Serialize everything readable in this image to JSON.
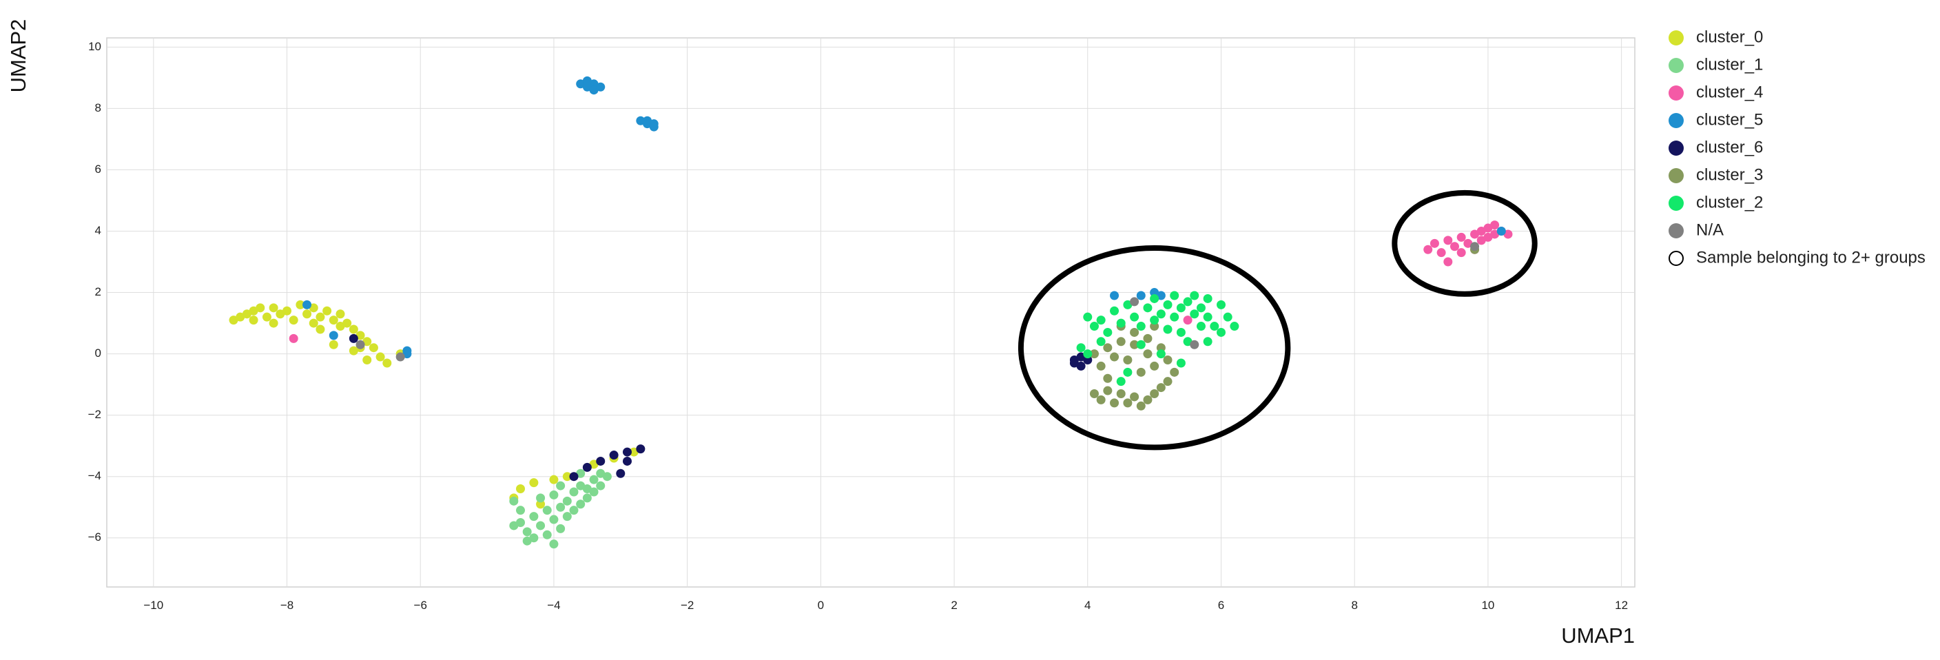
{
  "chart_data": {
    "type": "scatter",
    "xlabel": "UMAP1",
    "ylabel": "UMAP2",
    "xlim": [
      -10.7,
      12.2
    ],
    "ylim": [
      -7.6,
      10.3
    ],
    "xticks": [
      -10,
      -8,
      -6,
      -4,
      -2,
      0,
      2,
      4,
      6,
      8,
      10,
      12
    ],
    "yticks": [
      -6,
      -4,
      -2,
      0,
      2,
      4,
      6,
      8,
      10
    ],
    "grid": true,
    "legend_position": "right",
    "legend": [
      {
        "name": "cluster_0",
        "color": "#d4e22c"
      },
      {
        "name": "cluster_1",
        "color": "#7fd88f"
      },
      {
        "name": "cluster_4",
        "color": "#f45aa6"
      },
      {
        "name": "cluster_5",
        "color": "#1f8fcf"
      },
      {
        "name": "cluster_6",
        "color": "#14145e"
      },
      {
        "name": "cluster_3",
        "color": "#869a5c"
      },
      {
        "name": "cluster_2",
        "color": "#12e86a"
      },
      {
        "name": "N/A",
        "color": "#808080"
      },
      {
        "name": "Sample belonging to 2+ groups",
        "color": "none",
        "marker": "open-circle"
      }
    ],
    "series": [
      {
        "name": "cluster_0",
        "color": "#d4e22c",
        "points": [
          [
            -8.8,
            1.1
          ],
          [
            -8.7,
            1.2
          ],
          [
            -8.6,
            1.3
          ],
          [
            -8.5,
            1.4
          ],
          [
            -8.4,
            1.5
          ],
          [
            -8.3,
            1.2
          ],
          [
            -8.2,
            1.5
          ],
          [
            -8.1,
            1.3
          ],
          [
            -8.0,
            1.4
          ],
          [
            -7.9,
            1.1
          ],
          [
            -7.8,
            1.6
          ],
          [
            -7.7,
            1.3
          ],
          [
            -7.6,
            1.5
          ],
          [
            -7.5,
            1.2
          ],
          [
            -7.4,
            1.4
          ],
          [
            -7.3,
            1.1
          ],
          [
            -7.2,
            1.3
          ],
          [
            -7.1,
            1.0
          ],
          [
            -7.0,
            0.8
          ],
          [
            -6.9,
            0.6
          ],
          [
            -6.8,
            0.4
          ],
          [
            -6.7,
            0.2
          ],
          [
            -6.6,
            -0.1
          ],
          [
            -6.5,
            -0.3
          ],
          [
            -7.5,
            0.8
          ],
          [
            -7.3,
            0.3
          ],
          [
            -7.2,
            0.9
          ],
          [
            -7.0,
            0.1
          ],
          [
            -6.9,
            0.2
          ],
          [
            -6.8,
            -0.2
          ],
          [
            -8.5,
            1.1
          ],
          [
            -8.2,
            1.0
          ],
          [
            -7.6,
            1.0
          ],
          [
            -6.3,
            0.0
          ],
          [
            -4.5,
            -4.4
          ],
          [
            -4.3,
            -4.2
          ],
          [
            -4.0,
            -4.1
          ],
          [
            -3.8,
            -4.0
          ],
          [
            -4.6,
            -4.7
          ],
          [
            -3.4,
            -3.6
          ],
          [
            -3.1,
            -3.4
          ],
          [
            -2.8,
            -3.2
          ],
          [
            -4.2,
            -4.9
          ]
        ]
      },
      {
        "name": "cluster_1",
        "color": "#7fd88f",
        "points": [
          [
            -4.6,
            -4.8
          ],
          [
            -4.5,
            -5.1
          ],
          [
            -4.5,
            -5.5
          ],
          [
            -4.4,
            -5.8
          ],
          [
            -4.3,
            -5.3
          ],
          [
            -4.3,
            -6.0
          ],
          [
            -4.2,
            -5.6
          ],
          [
            -4.2,
            -4.7
          ],
          [
            -4.1,
            -5.1
          ],
          [
            -4.1,
            -5.9
          ],
          [
            -4.0,
            -5.4
          ],
          [
            -4.0,
            -4.6
          ],
          [
            -3.9,
            -5.0
          ],
          [
            -3.9,
            -5.7
          ],
          [
            -3.8,
            -4.8
          ],
          [
            -3.8,
            -5.3
          ],
          [
            -3.7,
            -4.5
          ],
          [
            -3.7,
            -5.1
          ],
          [
            -3.6,
            -4.3
          ],
          [
            -3.6,
            -4.9
          ],
          [
            -3.5,
            -4.4
          ],
          [
            -3.5,
            -4.7
          ],
          [
            -3.4,
            -4.1
          ],
          [
            -3.4,
            -4.5
          ],
          [
            -3.3,
            -3.9
          ],
          [
            -3.3,
            -4.3
          ],
          [
            -3.2,
            -4.0
          ],
          [
            -4.6,
            -5.6
          ],
          [
            -4.4,
            -6.1
          ],
          [
            -4.0,
            -6.2
          ],
          [
            -3.9,
            -4.3
          ],
          [
            -3.6,
            -3.9
          ]
        ]
      },
      {
        "name": "cluster_4",
        "color": "#f45aa6",
        "points": [
          [
            9.1,
            3.4
          ],
          [
            9.2,
            3.6
          ],
          [
            9.3,
            3.3
          ],
          [
            9.4,
            3.7
          ],
          [
            9.4,
            3.0
          ],
          [
            9.5,
            3.5
          ],
          [
            9.6,
            3.8
          ],
          [
            9.7,
            3.6
          ],
          [
            9.8,
            3.9
          ],
          [
            9.9,
            4.0
          ],
          [
            9.9,
            3.7
          ],
          [
            10.0,
            4.1
          ],
          [
            10.0,
            3.8
          ],
          [
            10.1,
            4.2
          ],
          [
            10.1,
            3.9
          ],
          [
            10.2,
            4.0
          ],
          [
            10.3,
            3.9
          ],
          [
            9.6,
            3.3
          ],
          [
            9.8,
            3.4
          ],
          [
            -7.9,
            0.5
          ],
          [
            5.5,
            1.1
          ]
        ]
      },
      {
        "name": "cluster_5",
        "color": "#1f8fcf",
        "points": [
          [
            -3.6,
            8.8
          ],
          [
            -3.5,
            8.7
          ],
          [
            -3.4,
            8.8
          ],
          [
            -3.4,
            8.6
          ],
          [
            -3.3,
            8.7
          ],
          [
            -3.5,
            8.9
          ],
          [
            -2.7,
            7.6
          ],
          [
            -2.6,
            7.6
          ],
          [
            -2.6,
            7.5
          ],
          [
            -2.5,
            7.5
          ],
          [
            -2.5,
            7.4
          ],
          [
            -7.7,
            1.6
          ],
          [
            -6.2,
            0.1
          ],
          [
            -6.2,
            0.0
          ],
          [
            -7.3,
            0.6
          ],
          [
            5.0,
            2.0
          ],
          [
            5.1,
            1.9
          ],
          [
            4.8,
            1.9
          ],
          [
            4.4,
            1.9
          ],
          [
            10.2,
            4.0
          ]
        ]
      },
      {
        "name": "cluster_6",
        "color": "#14145e",
        "points": [
          [
            -7.0,
            0.5
          ],
          [
            -3.7,
            -4.0
          ],
          [
            -3.5,
            -3.7
          ],
          [
            -3.3,
            -3.5
          ],
          [
            -3.1,
            -3.3
          ],
          [
            -2.9,
            -3.2
          ],
          [
            -2.7,
            -3.1
          ],
          [
            -3.0,
            -3.9
          ],
          [
            -2.9,
            -3.5
          ],
          [
            3.8,
            -0.2
          ],
          [
            3.9,
            -0.4
          ],
          [
            3.8,
            -0.3
          ],
          [
            4.0,
            -0.2
          ],
          [
            3.9,
            -0.1
          ]
        ]
      },
      {
        "name": "cluster_3",
        "color": "#869a5c",
        "points": [
          [
            4.1,
            -1.3
          ],
          [
            4.2,
            -1.5
          ],
          [
            4.3,
            -1.2
          ],
          [
            4.4,
            -1.6
          ],
          [
            4.5,
            -1.3
          ],
          [
            4.6,
            -1.6
          ],
          [
            4.7,
            -1.4
          ],
          [
            4.8,
            -1.7
          ],
          [
            4.9,
            -1.5
          ],
          [
            5.0,
            -1.3
          ],
          [
            5.1,
            -1.1
          ],
          [
            5.2,
            -0.9
          ],
          [
            5.3,
            -0.6
          ],
          [
            5.2,
            -0.2
          ],
          [
            5.1,
            0.2
          ],
          [
            5.0,
            -0.4
          ],
          [
            4.9,
            0.0
          ],
          [
            4.8,
            -0.6
          ],
          [
            4.7,
            0.3
          ],
          [
            4.6,
            -0.2
          ],
          [
            4.5,
            0.4
          ],
          [
            4.4,
            -0.1
          ],
          [
            4.3,
            0.2
          ],
          [
            4.2,
            -0.4
          ],
          [
            4.1,
            0.0
          ],
          [
            4.7,
            0.7
          ],
          [
            4.9,
            0.5
          ],
          [
            5.0,
            0.9
          ],
          [
            4.5,
            0.9
          ],
          [
            4.3,
            -0.8
          ],
          [
            9.8,
            3.4
          ]
        ]
      },
      {
        "name": "cluster_2",
        "color": "#12e86a",
        "points": [
          [
            4.0,
            1.2
          ],
          [
            4.1,
            0.9
          ],
          [
            4.2,
            1.1
          ],
          [
            4.3,
            0.7
          ],
          [
            4.4,
            1.4
          ],
          [
            4.5,
            1.0
          ],
          [
            4.6,
            1.6
          ],
          [
            4.7,
            1.2
          ],
          [
            4.8,
            0.9
          ],
          [
            4.9,
            1.5
          ],
          [
            5.0,
            1.1
          ],
          [
            5.0,
            1.8
          ],
          [
            5.1,
            1.3
          ],
          [
            5.2,
            1.6
          ],
          [
            5.2,
            0.8
          ],
          [
            5.3,
            1.2
          ],
          [
            5.3,
            1.9
          ],
          [
            5.4,
            1.5
          ],
          [
            5.4,
            0.7
          ],
          [
            5.5,
            1.7
          ],
          [
            5.6,
            1.3
          ],
          [
            5.6,
            1.9
          ],
          [
            5.7,
            0.9
          ],
          [
            5.7,
            1.5
          ],
          [
            5.8,
            1.2
          ],
          [
            5.8,
            1.8
          ],
          [
            5.9,
            0.9
          ],
          [
            6.0,
            1.6
          ],
          [
            6.0,
            0.7
          ],
          [
            6.1,
            1.2
          ],
          [
            4.5,
            -0.9
          ],
          [
            4.6,
            -0.6
          ],
          [
            4.2,
            0.4
          ],
          [
            4.0,
            0.0
          ],
          [
            3.9,
            0.2
          ],
          [
            4.8,
            0.3
          ],
          [
            5.1,
            0.0
          ],
          [
            5.4,
            -0.3
          ],
          [
            5.5,
            0.4
          ],
          [
            5.8,
            0.4
          ],
          [
            6.2,
            0.9
          ]
        ]
      },
      {
        "name": "N/A",
        "color": "#808080",
        "points": [
          [
            -6.9,
            0.3
          ],
          [
            -6.3,
            -0.1
          ],
          [
            4.7,
            1.7
          ],
          [
            5.6,
            0.3
          ],
          [
            9.8,
            3.5
          ]
        ]
      }
    ],
    "annotations": [
      {
        "shape": "ellipse",
        "cx": 5.0,
        "cy": 0.2,
        "rx": 2.0,
        "ry": 3.25
      },
      {
        "shape": "ellipse",
        "cx": 9.65,
        "cy": 3.6,
        "rx": 1.05,
        "ry": 1.65
      }
    ]
  }
}
